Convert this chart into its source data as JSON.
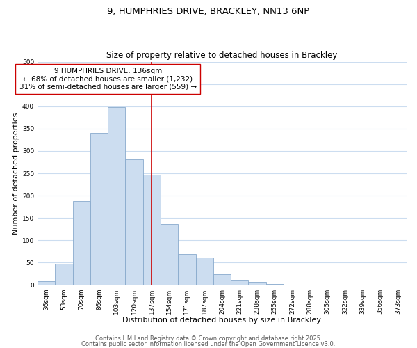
{
  "title_line1": "9, HUMPHRIES DRIVE, BRACKLEY, NN13 6NP",
  "title_line2": "Size of property relative to detached houses in Brackley",
  "xlabel": "Distribution of detached houses by size in Brackley",
  "ylabel": "Number of detached properties",
  "bar_labels": [
    "36sqm",
    "53sqm",
    "70sqm",
    "86sqm",
    "103sqm",
    "120sqm",
    "137sqm",
    "154sqm",
    "171sqm",
    "187sqm",
    "204sqm",
    "221sqm",
    "238sqm",
    "255sqm",
    "272sqm",
    "288sqm",
    "305sqm",
    "322sqm",
    "339sqm",
    "356sqm",
    "373sqm"
  ],
  "bar_values": [
    8,
    47,
    188,
    340,
    398,
    282,
    247,
    137,
    70,
    62,
    25,
    10,
    7,
    2,
    0,
    0,
    0,
    0,
    0,
    0,
    0
  ],
  "bar_color": "#ccddf0",
  "bar_edge_color": "#88aacc",
  "vline_x_index": 6,
  "vline_color": "#cc0000",
  "annotation_line1": "9 HUMPHRIES DRIVE: 136sqm",
  "annotation_line2": "← 68% of detached houses are smaller (1,232)",
  "annotation_line3": "31% of semi-detached houses are larger (559) →",
  "annotation_box_edge_color": "#cc0000",
  "annotation_box_face_color": "#ffffff",
  "ylim": [
    0,
    500
  ],
  "yticks": [
    0,
    50,
    100,
    150,
    200,
    250,
    300,
    350,
    400,
    450,
    500
  ],
  "background_color": "#ffffff",
  "grid_color": "#ccddf0",
  "footer_line1": "Contains HM Land Registry data © Crown copyright and database right 2025.",
  "footer_line2": "Contains public sector information licensed under the Open Government Licence v3.0.",
  "title_fontsize": 9.5,
  "subtitle_fontsize": 8.5,
  "axis_label_fontsize": 8,
  "tick_fontsize": 6.5,
  "annotation_fontsize": 7.5,
  "footer_fontsize": 6
}
